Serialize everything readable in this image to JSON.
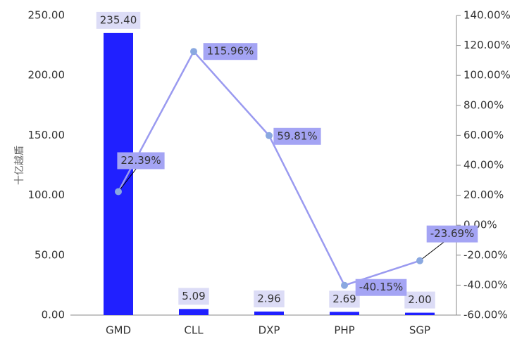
{
  "chart_data": {
    "type": "bar",
    "y_label": "十亿越盾",
    "categories": [
      "GMD",
      "CLL",
      "DXP",
      "PHP",
      "SGP"
    ],
    "series": [
      {
        "type": "bar",
        "color": "#2020ff",
        "values": [
          235.4,
          5.09,
          2.96,
          2.69,
          2.0
        ],
        "value_labels": [
          "235.40",
          "5.09",
          "2.96",
          "2.69",
          "2.00"
        ]
      },
      {
        "type": "line",
        "axis": "y2",
        "color": "#9a9af0",
        "values": [
          22.39,
          115.96,
          59.81,
          -40.15,
          -23.69
        ],
        "value_labels": [
          "22.39%",
          "115.96%",
          "59.81%",
          "-40.15%",
          "-23.69%"
        ]
      }
    ],
    "ylim": [
      0,
      250
    ],
    "yticks": [
      {
        "value": 0,
        "label": "0.00"
      },
      {
        "value": 50,
        "label": "50.00"
      },
      {
        "value": 100,
        "label": "100.00"
      },
      {
        "value": 150,
        "label": "150.00"
      },
      {
        "value": 200,
        "label": "200.00"
      },
      {
        "value": 250,
        "label": "250.00"
      }
    ],
    "y2lim": [
      -60,
      140
    ],
    "y2ticks": [
      {
        "value": -60,
        "label": "-60.00%"
      },
      {
        "value": -40,
        "label": "-40.00%"
      },
      {
        "value": -20,
        "label": "-20.00%"
      },
      {
        "value": 0,
        "label": "0.00%"
      },
      {
        "value": 20,
        "label": "20.00%"
      },
      {
        "value": 40,
        "label": "40.00%"
      },
      {
        "value": 60,
        "label": "60.00%"
      },
      {
        "value": 80,
        "label": "80.00%"
      },
      {
        "value": 100,
        "label": "100.00%"
      },
      {
        "value": 120,
        "label": "120.00%"
      },
      {
        "value": 140,
        "label": "140.00%"
      }
    ]
  }
}
